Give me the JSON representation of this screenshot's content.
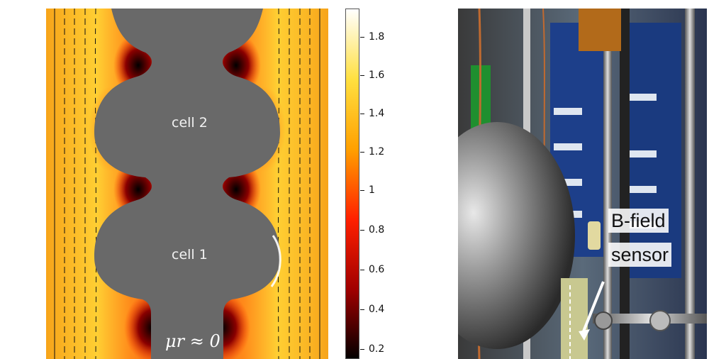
{
  "simulation": {
    "cell_top_label": "cell 2",
    "cell_bottom_label": "cell 1",
    "mu_label": "μr ≈ 0"
  },
  "colorbar": {
    "ticks": [
      "1.8",
      "1.6",
      "1.4",
      "1.2",
      "1",
      "0.8",
      "0.6",
      "0.4",
      "0.2"
    ],
    "colors": [
      "#000000",
      "#a00000",
      "#ff2000",
      "#ffa000",
      "#ffe040",
      "#ffffff"
    ]
  },
  "photo": {
    "label_line1": "B-field",
    "label_line2": "sensor"
  }
}
